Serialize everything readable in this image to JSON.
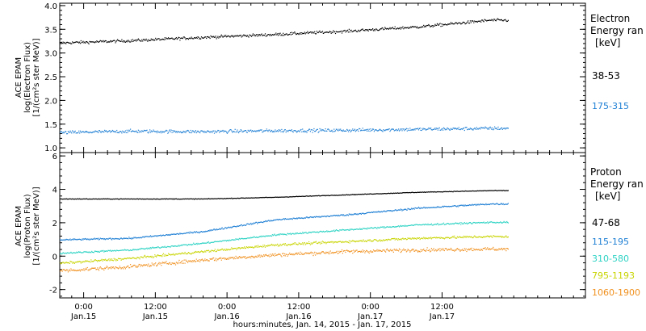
{
  "chart_data": [
    {
      "type": "scatter",
      "panel": "electron",
      "ylabel_lines": [
        "ACE EPAM",
        "log(Electron Flux)",
        "[1/(cm²s ster MeV)]"
      ],
      "ylim": [
        0.9,
        4.05
      ],
      "yticks": [
        1.0,
        1.5,
        2.0,
        2.5,
        3.0,
        3.5,
        4.0
      ],
      "ytick_labels": [
        "1.0",
        "1.5",
        "2.0",
        "2.5",
        "3.0",
        "3.5",
        "4.0"
      ],
      "legend": {
        "title_lines": [
          "Electron",
          "Energy ran",
          "[keV]"
        ],
        "entries": [
          {
            "label": "38-53",
            "color": "#000000"
          },
          {
            "label": "175-315",
            "color": "#1e7fd4"
          }
        ]
      },
      "series": [
        {
          "color": "#000000",
          "x_hours": [
            0,
            12,
            24,
            36,
            48,
            60,
            72
          ],
          "y": [
            3.22,
            3.27,
            3.34,
            3.4,
            3.47,
            3.56,
            3.7
          ],
          "scatter": 0.05
        },
        {
          "color": "#1e7fd4",
          "x_hours": [
            0,
            12,
            24,
            36,
            48,
            60,
            72
          ],
          "y": [
            1.33,
            1.36,
            1.35,
            1.37,
            1.38,
            1.4,
            1.42
          ],
          "scatter": 0.06
        }
      ]
    },
    {
      "type": "scatter",
      "panel": "proton",
      "ylabel_lines": [
        "ACE EPAM",
        "log(Proton Flux)",
        "[1/(cm²s ster MeV)]"
      ],
      "ylim": [
        -2.5,
        6.2
      ],
      "yticks": [
        -2,
        0,
        2,
        4,
        6
      ],
      "ytick_labels": [
        "-2",
        "0",
        "2",
        "4",
        "6"
      ],
      "legend": {
        "title_lines": [
          "Proton",
          "Energy ran",
          "[keV]"
        ],
        "entries": [
          {
            "label": "47-68",
            "color": "#000000"
          },
          {
            "label": "115-195",
            "color": "#1e7fd4"
          },
          {
            "label": "310-580",
            "color": "#2ed3c4"
          },
          {
            "label": "795-1193",
            "color": "#c8d400"
          },
          {
            "label": "1060-1900",
            "color": "#f0901e"
          }
        ]
      },
      "series": [
        {
          "color": "#000000",
          "x_hours": [
            0,
            12,
            24,
            36,
            48,
            60,
            72
          ],
          "y": [
            3.45,
            3.45,
            3.45,
            3.55,
            3.7,
            3.85,
            3.95
          ],
          "scatter": 0.03
        },
        {
          "color": "#1e7fd4",
          "x_hours": [
            0,
            12,
            24,
            36,
            48,
            60,
            72
          ],
          "y": [
            1.0,
            1.1,
            1.5,
            2.2,
            2.5,
            2.9,
            3.15
          ],
          "scatter": 0.08
        },
        {
          "color": "#2ed3c4",
          "x_hours": [
            0,
            12,
            24,
            36,
            48,
            60,
            72
          ],
          "y": [
            0.2,
            0.4,
            0.8,
            1.3,
            1.6,
            1.9,
            2.05
          ],
          "scatter": 0.08
        },
        {
          "color": "#c8d400",
          "x_hours": [
            0,
            12,
            24,
            36,
            48,
            60,
            72
          ],
          "y": [
            -0.4,
            -0.1,
            0.3,
            0.7,
            0.9,
            1.1,
            1.2
          ],
          "scatter": 0.12
        },
        {
          "color": "#f0901e",
          "x_hours": [
            0,
            12,
            24,
            36,
            48,
            60,
            72
          ],
          "y": [
            -0.85,
            -0.6,
            -0.2,
            0.1,
            0.3,
            0.4,
            0.45
          ],
          "scatter": 0.18
        }
      ]
    }
  ],
  "x_axis": {
    "start": "Jan. 14, 2015 ~20:00",
    "ticks": [
      {
        "time": "0:00",
        "date": "Jan.15"
      },
      {
        "time": "12:00",
        "date": "Jan.15"
      },
      {
        "time": "0:00",
        "date": "Jan.16"
      },
      {
        "time": "12:00",
        "date": "Jan.16"
      },
      {
        "time": "0:00",
        "date": "Jan.17"
      },
      {
        "time": "12:00",
        "date": "Jan.17"
      }
    ],
    "tick_hours": [
      4,
      16,
      28,
      40,
      52,
      64
    ],
    "range_hours": [
      0,
      88
    ],
    "data_end_hours": 75,
    "xlabel": "hours:minutes, Jan. 14, 2015 - Jan. 17, 2015"
  }
}
